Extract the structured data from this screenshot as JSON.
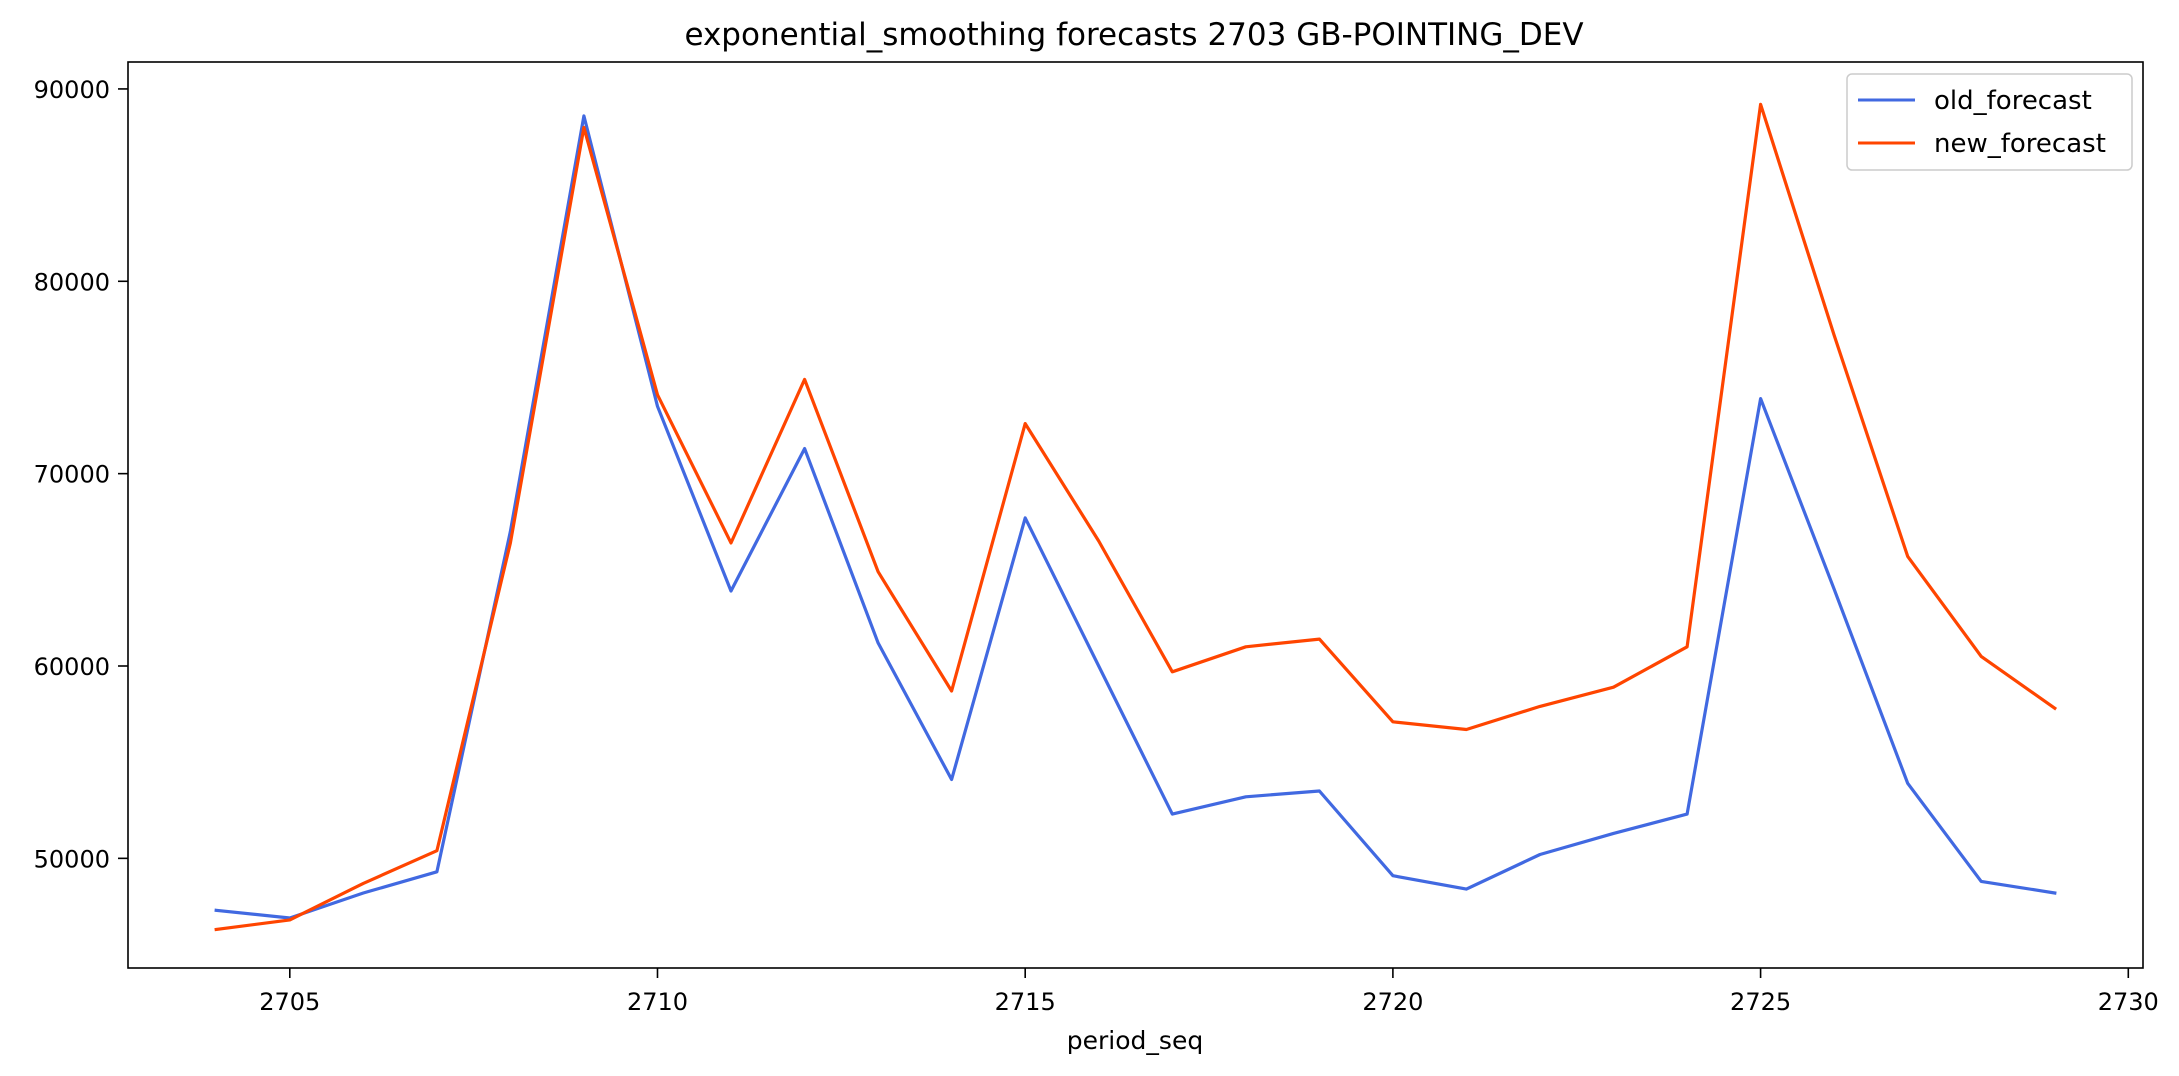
{
  "chart_data": {
    "type": "line",
    "title": "exponential_smoothing forecasts 2703 GB-POINTING_DEV",
    "xlabel": "period_seq",
    "ylabel": "",
    "xlim": [
      2702.8,
      2730.2
    ],
    "ylim": [
      44300,
      91400
    ],
    "xticks": [
      2705,
      2710,
      2715,
      2720,
      2725,
      2730
    ],
    "yticks": [
      50000,
      60000,
      70000,
      80000,
      90000
    ],
    "grid": false,
    "legend_position": "top-right",
    "x": [
      2704,
      2705,
      2706,
      2707,
      2708,
      2709,
      2710,
      2711,
      2712,
      2713,
      2714,
      2715,
      2716,
      2717,
      2718,
      2719,
      2720,
      2721,
      2722,
      2723,
      2724,
      2725,
      2726,
      2727,
      2728,
      2729
    ],
    "series": [
      {
        "name": "old_forecast",
        "color": "#4169e1",
        "values": [
          47300,
          46900,
          48200,
          49300,
          67000,
          88600,
          73500,
          63900,
          71300,
          61200,
          54100,
          67700,
          60000,
          52300,
          53200,
          53500,
          49100,
          48400,
          50200,
          51300,
          52300,
          73900,
          64000,
          53900,
          48800,
          48200
        ]
      },
      {
        "name": "new_forecast",
        "color": "#ff4500",
        "values": [
          46300,
          46800,
          48700,
          50400,
          66400,
          88000,
          74100,
          66400,
          74900,
          64900,
          58700,
          72600,
          66500,
          59700,
          61000,
          61400,
          57100,
          56700,
          57900,
          58900,
          61000,
          89200,
          77200,
          65700,
          60500,
          57800
        ]
      }
    ]
  }
}
